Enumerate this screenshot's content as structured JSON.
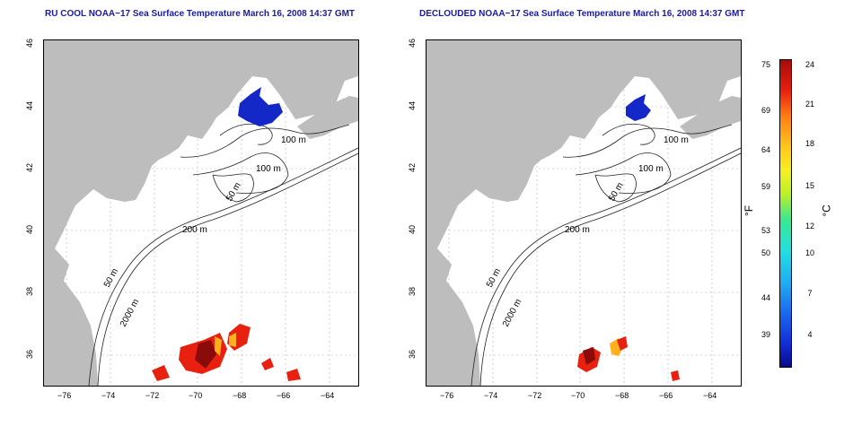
{
  "titles": {
    "left": "RU COOL NOAA−17 Sea Surface Temperature March 16, 2008 14:37 GMT",
    "right": "DECLOUDED NOAA−17 Sea Surface Temperature March 16, 2008 14:37 GMT"
  },
  "axes": {
    "lon_ticks": [
      "−76",
      "−74",
      "−72",
      "−70",
      "−68",
      "−66",
      "−64"
    ],
    "lat_ticks": [
      "46",
      "44",
      "42",
      "40",
      "38",
      "36"
    ]
  },
  "contour_labels": [
    "100 m",
    "100 m",
    "50 m",
    "200 m",
    "50 m",
    "2000 m"
  ],
  "colorbar": {
    "fahrenheit_ticks": [
      "75",
      "69",
      "64",
      "59",
      "53",
      "50",
      "44",
      "39"
    ],
    "celsius_ticks": [
      "24",
      "21",
      "18",
      "15",
      "12",
      "10",
      "7",
      "4"
    ],
    "unit_f": "°F",
    "unit_c": "°C"
  },
  "colors": {
    "land": "#bdbdbd",
    "cold": "#1428c8",
    "warm_dark": "#8b0a0a",
    "warm": "#e8200f",
    "warm_light": "#ffb01a",
    "title": "#1a1aa0"
  }
}
